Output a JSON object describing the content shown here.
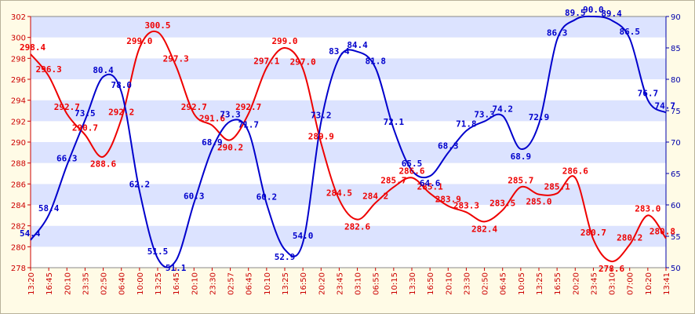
{
  "chart_data": {
    "type": "line",
    "title": "",
    "xlabel": "",
    "ylabel_left": "",
    "ylabel_right": "",
    "grid": "horizontal alternating bands",
    "legend": "none",
    "categories": [
      "13:20",
      "16:45",
      "20:10",
      "23:35",
      "02:50",
      "06:40",
      "10:00",
      "13:25",
      "16:45",
      "20:10",
      "23:30",
      "02:57",
      "06:45",
      "10:10",
      "13:25",
      "16:50",
      "20:20",
      "23:45",
      "03:10",
      "06:55",
      "10:15",
      "13:30",
      "16:50",
      "20:10",
      "23:30",
      "02:50",
      "06:45",
      "10:05",
      "13:25",
      "16:55",
      "20:20",
      "23:45",
      "03:10",
      "07:00",
      "10:20",
      "13:41"
    ],
    "left_axis": {
      "min": 278,
      "max": 302,
      "ticks": [
        278,
        280,
        282,
        284,
        286,
        288,
        290,
        292,
        294,
        296,
        298,
        300,
        302
      ],
      "color": "#cc0000"
    },
    "right_axis": {
      "min": 50,
      "max": 90,
      "ticks": [
        50,
        55,
        60,
        65,
        70,
        75,
        80,
        85,
        90
      ],
      "color": "#0000aa"
    },
    "series": [
      {
        "axis": "left",
        "color": "#ee0000",
        "values": [
          298.4,
          296.3,
          292.7,
          290.7,
          288.6,
          292.2,
          299.0,
          300.5,
          297.3,
          292.7,
          291.6,
          290.2,
          292.7,
          297.1,
          299.0,
          297.0,
          289.9,
          284.5,
          282.6,
          284.2,
          285.7,
          286.6,
          285.1,
          283.9,
          283.3,
          282.4,
          283.5,
          285.7,
          285.0,
          285.1,
          286.6,
          280.7,
          278.6,
          280.2,
          283.0,
          280.8
        ],
        "labels": [
          "298.4",
          "296.3",
          "292.7",
          "290.7",
          "288.6",
          "292.2",
          "299.0",
          "300.5",
          "297.3",
          "292.7",
          "291.6",
          "290.2",
          "292.7",
          "297.1",
          "299.0",
          "297.0",
          "289.9",
          "284.5",
          "282.6",
          "284.2",
          "285.7",
          "286.6",
          "285.1",
          "283.9",
          "283.3",
          "282.4",
          "283.5",
          "285.7",
          "285.0",
          "285.1",
          "286.6",
          "280.7",
          "278.6",
          "280.2",
          "283.0",
          "280.8"
        ]
      },
      {
        "axis": "right",
        "color": "#0000cc",
        "values": [
          54.4,
          58.4,
          66.3,
          73.5,
          80.4,
          78.0,
          62.2,
          51.5,
          51.1,
          60.3,
          68.9,
          73.3,
          71.7,
          60.2,
          52.9,
          54.0,
          73.2,
          83.4,
          84.4,
          81.8,
          72.1,
          65.5,
          64.6,
          68.3,
          71.8,
          73.3,
          74.2,
          68.9,
          72.9,
          86.3,
          89.5,
          90.0,
          89.4,
          86.5,
          76.7,
          74.7
        ],
        "labels": [
          "54.4",
          "58.4",
          "66.3",
          "73.5",
          "80.4",
          "78.0",
          "62.2",
          "51.5",
          "51.1",
          "60.3",
          "68.9",
          "73.3",
          "71.7",
          "60.2",
          "52.9",
          "54.0",
          "73.2",
          "83.4",
          "84.4",
          "81.8",
          "72.1",
          "65.5",
          "64.6",
          "68.3",
          "71.8",
          "73.3",
          "74.2",
          "68.9",
          "72.9",
          "86.3",
          "89.5",
          "90.0",
          "89.4",
          "86.5",
          "76.7",
          "74.7"
        ]
      }
    ]
  },
  "colors": {
    "band_light": "#ffffff",
    "band_dark": "#dce3ff",
    "frame_bg": "#fffbe6",
    "axis_line": "#888888"
  }
}
